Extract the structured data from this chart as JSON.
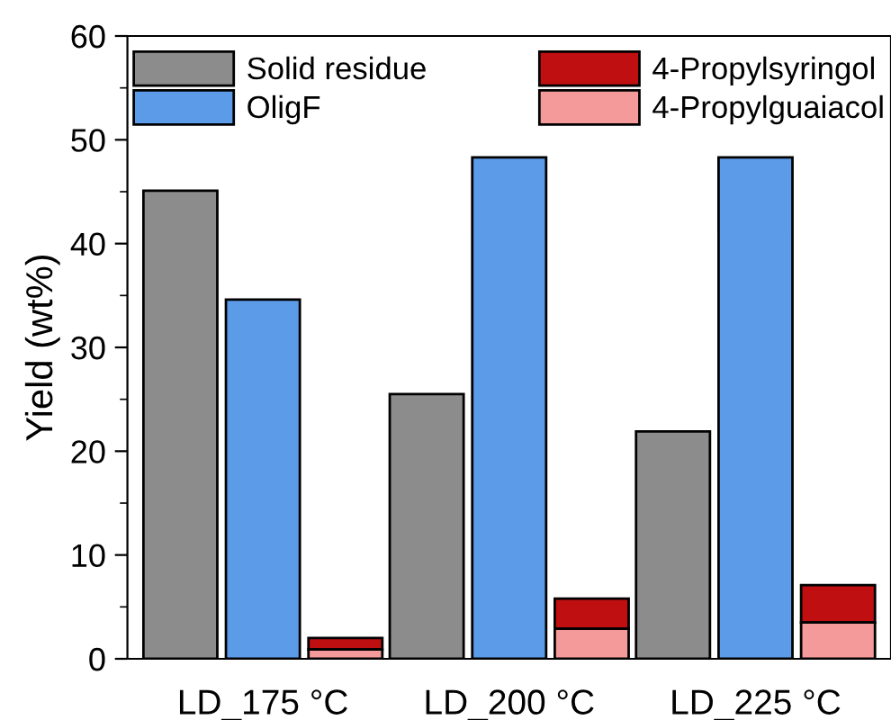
{
  "chart_data": {
    "type": "bar",
    "ylabel": "Yield (wt%)",
    "categories": [
      "LD_175 °C",
      "LD_200 °C",
      "LD_225 °C"
    ],
    "series": [
      {
        "name": "Solid residue",
        "color": "#8c8c8c",
        "values": [
          45.1,
          25.5,
          21.9
        ]
      },
      {
        "name": "OligF",
        "color": "#5b9be8",
        "values": [
          34.6,
          48.3,
          48.3
        ]
      },
      {
        "name": "4-Propylsyringol",
        "color": "#c00f10",
        "values": [
          1.1,
          2.9,
          3.6
        ],
        "base": [
          0.9,
          2.9,
          3.5
        ]
      },
      {
        "name": "4-Propylguaiacol",
        "color": "#f59a9a",
        "values": [
          0.9,
          2.9,
          3.5
        ]
      }
    ],
    "ylim": [
      0,
      60
    ],
    "yticks": [
      0,
      10,
      20,
      30,
      40,
      50,
      60
    ],
    "legend": "top",
    "grid": false
  }
}
